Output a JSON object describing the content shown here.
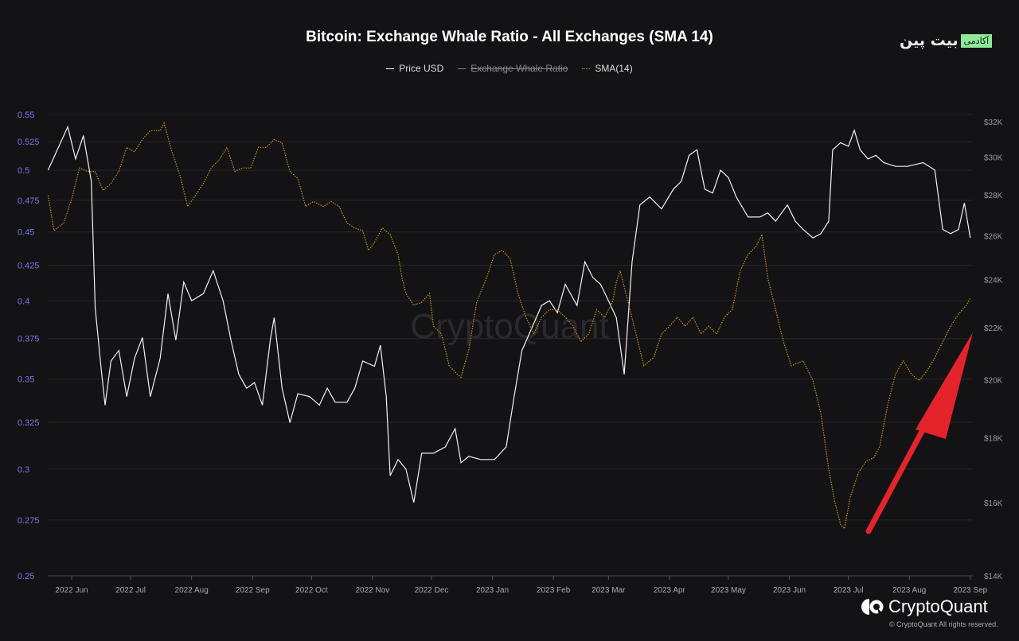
{
  "header": {
    "title": "Bitcoin: Exchange Whale Ratio - All Exchanges (SMA 14)",
    "brand_text": "بیت پین",
    "brand_tag": "آکادمی"
  },
  "legend": [
    {
      "label": "Price USD",
      "color": "#ffffff",
      "hidden": false
    },
    {
      "label": "Exchange Whale Ratio",
      "color": "#888888",
      "hidden": true
    },
    {
      "label": "SMA(14)",
      "color": "#c8900a",
      "hidden": false
    }
  ],
  "watermark": "CryptoQuant",
  "footer": {
    "logo_text": "CryptoQuant",
    "copyright": "© CryptoQuant All rights reserved."
  },
  "chart_data": {
    "type": "line",
    "title": "Bitcoin: Exchange Whale Ratio - All Exchanges (SMA 14)",
    "x_unit": "days since 2022-06-01",
    "x_ticks": [
      {
        "day": 0,
        "label": "2022 Jun"
      },
      {
        "day": 30,
        "label": "2022 Jul"
      },
      {
        "day": 61,
        "label": "2022 Aug"
      },
      {
        "day": 92,
        "label": "2022 Sep"
      },
      {
        "day": 122,
        "label": "2022 Oct"
      },
      {
        "day": 153,
        "label": "2022 Nov"
      },
      {
        "day": 183,
        "label": "2022 Dec"
      },
      {
        "day": 214,
        "label": "2023 Jan"
      },
      {
        "day": 245,
        "label": "2023 Feb"
      },
      {
        "day": 273,
        "label": "2023 Mar"
      },
      {
        "day": 304,
        "label": "2023 Apr"
      },
      {
        "day": 334,
        "label": "2023 May"
      },
      {
        "day": 365,
        "label": "2023 Jun"
      },
      {
        "day": 395,
        "label": "2023 Jul"
      },
      {
        "day": 426,
        "label": "2023 Aug"
      },
      {
        "day": 457,
        "label": "2023 Sep"
      }
    ],
    "left_axis": {
      "scale": "log",
      "range": [
        0.25,
        0.55
      ],
      "ticks": [
        "0.55",
        "0.525",
        "0.5",
        "0.475",
        "0.45",
        "0.425",
        "0.4",
        "0.375",
        "0.35",
        "0.325",
        "0.3",
        "0.275",
        "0.25"
      ]
    },
    "right_axis": {
      "scale": "log",
      "range": [
        14,
        32
      ],
      "ticks": [
        {
          "v": 32,
          "label": "$32K"
        },
        {
          "v": 30,
          "label": "$30K"
        },
        {
          "v": 28,
          "label": "$28K"
        },
        {
          "v": 26,
          "label": "$26K"
        },
        {
          "v": 24,
          "label": "$24K"
        },
        {
          "v": 22,
          "label": "$22K"
        },
        {
          "v": 20,
          "label": "$20K"
        },
        {
          "v": 18,
          "label": "$18K"
        },
        {
          "v": 16,
          "label": "$16K"
        },
        {
          "v": 14,
          "label": "$14K"
        }
      ]
    },
    "series": [
      {
        "name": "Price USD",
        "axis": "right",
        "unit": "thousand USD",
        "days": [
          -12,
          -2,
          2,
          6,
          10,
          12,
          15,
          17,
          20,
          24,
          28,
          32,
          36,
          40,
          45,
          49,
          53,
          57,
          61,
          67,
          72,
          77,
          81,
          85,
          89,
          93,
          97,
          101,
          103,
          107,
          111,
          115,
          121,
          126,
          130,
          134,
          140,
          144,
          148,
          154,
          157,
          160,
          162,
          166,
          170,
          174,
          178,
          184,
          190,
          195,
          198,
          202,
          208,
          215,
          221,
          225,
          229,
          233,
          239,
          243,
          247,
          251,
          257,
          261,
          265,
          269,
          273,
          277,
          281,
          285,
          289,
          294,
          300,
          306,
          310,
          314,
          318,
          322,
          326,
          330,
          334,
          338,
          344,
          350,
          354,
          358,
          364,
          368,
          372,
          377,
          381,
          385,
          387,
          391,
          395,
          398,
          401,
          405,
          409,
          413,
          419,
          425,
          433,
          439,
          443,
          447,
          451,
          454,
          457
        ],
        "values": [
          29.3,
          31.7,
          29.9,
          31.2,
          28.7,
          22.8,
          20.4,
          19.1,
          20.7,
          21.1,
          19.4,
          20.8,
          21.6,
          19.4,
          20.8,
          23.4,
          21.5,
          23.9,
          23.1,
          23.4,
          24.4,
          23.1,
          21.5,
          20.2,
          19.7,
          19.9,
          19.1,
          21.5,
          22.4,
          19.7,
          18.5,
          19.5,
          19.4,
          19.1,
          19.7,
          19.2,
          19.2,
          19.7,
          20.7,
          20.5,
          21.3,
          19.4,
          16.8,
          17.3,
          17.0,
          16.0,
          17.5,
          17.5,
          17.7,
          18.3,
          17.2,
          17.4,
          17.3,
          17.3,
          17.7,
          19.4,
          21.1,
          21.8,
          22.9,
          23.1,
          22.6,
          23.8,
          22.9,
          24.8,
          24.1,
          23.8,
          23.1,
          22.4,
          20.2,
          24.8,
          27.5,
          27.9,
          27.3,
          28.3,
          28.7,
          30.1,
          30.4,
          28.3,
          28.1,
          29.3,
          28.9,
          27.9,
          26.9,
          26.9,
          27.1,
          26.7,
          27.5,
          26.7,
          26.3,
          25.9,
          26.1,
          26.7,
          30.4,
          30.8,
          30.6,
          31.5,
          30.4,
          29.9,
          30.1,
          29.7,
          29.5,
          29.5,
          29.7,
          29.3,
          26.3,
          26.1,
          26.3,
          27.6,
          25.9
        ]
      },
      {
        "name": "SMA(14)",
        "axis": "left",
        "days": [
          -12,
          -9,
          -4,
          0,
          4,
          8,
          12,
          16,
          20,
          24,
          28,
          32,
          36,
          40,
          45,
          47,
          51,
          55,
          59,
          63,
          67,
          71,
          75,
          79,
          83,
          87,
          91,
          95,
          99,
          103,
          107,
          111,
          115,
          119,
          123,
          128,
          132,
          136,
          140,
          144,
          148,
          151,
          154,
          158,
          162,
          166,
          168,
          170,
          174,
          178,
          182,
          184,
          188,
          192,
          196,
          198,
          202,
          206,
          211,
          215,
          219,
          223,
          227,
          231,
          235,
          239,
          243,
          247,
          251,
          255,
          259,
          263,
          267,
          271,
          275,
          277,
          279,
          283,
          287,
          291,
          296,
          300,
          304,
          308,
          312,
          316,
          320,
          324,
          328,
          332,
          336,
          340,
          344,
          348,
          351,
          354,
          358,
          362,
          366,
          372,
          377,
          381,
          385,
          388,
          391,
          393,
          396,
          400,
          404,
          408,
          411,
          415,
          419,
          423,
          427,
          431,
          435,
          439,
          443,
          447,
          451,
          455,
          457
        ],
        "values": [
          0.479,
          0.451,
          0.457,
          0.476,
          0.502,
          0.499,
          0.499,
          0.483,
          0.489,
          0.499,
          0.52,
          0.516,
          0.527,
          0.535,
          0.535,
          0.542,
          0.516,
          0.496,
          0.47,
          0.479,
          0.489,
          0.502,
          0.509,
          0.52,
          0.499,
          0.502,
          0.502,
          0.52,
          0.52,
          0.527,
          0.524,
          0.499,
          0.493,
          0.47,
          0.474,
          0.47,
          0.474,
          0.47,
          0.457,
          0.453,
          0.451,
          0.436,
          0.442,
          0.453,
          0.448,
          0.433,
          0.416,
          0.405,
          0.397,
          0.399,
          0.405,
          0.383,
          0.378,
          0.358,
          0.353,
          0.351,
          0.368,
          0.399,
          0.416,
          0.433,
          0.436,
          0.43,
          0.405,
          0.389,
          0.378,
          0.389,
          0.394,
          0.394,
          0.389,
          0.383,
          0.373,
          0.378,
          0.394,
          0.389,
          0.399,
          0.413,
          0.421,
          0.399,
          0.378,
          0.358,
          0.363,
          0.378,
          0.383,
          0.389,
          0.383,
          0.389,
          0.378,
          0.383,
          0.378,
          0.389,
          0.394,
          0.421,
          0.433,
          0.439,
          0.448,
          0.416,
          0.394,
          0.373,
          0.358,
          0.361,
          0.349,
          0.33,
          0.3,
          0.284,
          0.273,
          0.271,
          0.286,
          0.298,
          0.304,
          0.306,
          0.312,
          0.335,
          0.353,
          0.361,
          0.353,
          0.349,
          0.355,
          0.363,
          0.373,
          0.383,
          0.391,
          0.397,
          0.402
        ]
      }
    ],
    "annotation": "red arrow pointing up-right at rising SMA(14)",
    "grid": true,
    "legend_position": "top-center"
  }
}
